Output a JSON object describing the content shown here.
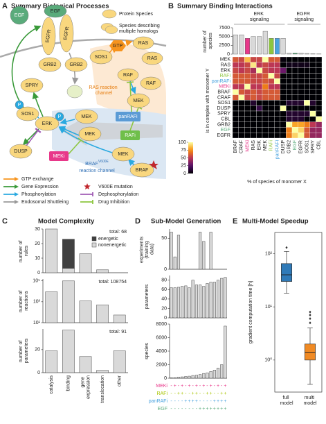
{
  "panels": [
    "A",
    "B",
    "C",
    "D",
    "E"
  ],
  "diagram": {
    "title": "Summary Biological Processes",
    "nodes": [
      "EGF",
      "EGF",
      "EGFR",
      "EGFR",
      "GRB2",
      "GRB2",
      "SPRY",
      "SOS1",
      "SOS1",
      "P",
      "GTP",
      "RAS",
      "RAS",
      "RAF",
      "RAF",
      "MEK",
      "ERK",
      "DUSP",
      "MEK",
      "MEK",
      "panRAFi",
      "RAFi",
      "MEKi",
      "MEK",
      "BRAF",
      "P"
    ],
    "ras_channel": "RAS reaction channel",
    "braf_channel": {
      "name": "BRAF",
      "superscript": "V600E",
      "text": "reaction channel"
    },
    "species_legend": [
      "Protein Species",
      "Species describing multiple homologs"
    ],
    "process_legend": [
      {
        "label": "GTP exchange",
        "color": "#f7941d"
      },
      {
        "label": "Gene Expression",
        "color": "#3a9a3a"
      },
      {
        "label": "Phosphorylation",
        "color": "#29a9e0"
      },
      {
        "label": "Endosomal Shuttleing",
        "color": "#999999"
      },
      {
        "label": "V600E mutation",
        "color": "#c1272d"
      },
      {
        "label": "Dephosphorylation",
        "color": "#a05cb5"
      },
      {
        "label": "Drug Inhibition",
        "color": "#8dc63f"
      }
    ]
  },
  "chart_data": [
    {
      "type": "heatmap",
      "title": "Summary Binding Interactions",
      "groups": [
        "ERK signaling",
        "EGFR signaling"
      ],
      "x_label": "% of species of monomer X",
      "y_label": "is in complex with monomer Y",
      "columns": [
        "BRAF",
        "CRAF",
        "MEKi",
        "RAS",
        "ERK",
        "MEK",
        "RAFi",
        "panRAFi",
        "DUSP",
        "GRB2",
        "EGF",
        "EGFR",
        "SOS1",
        "SPRY",
        "CBL"
      ],
      "rows": [
        "MEK",
        "RAS",
        "ERK",
        "RAFi",
        "panRAFi",
        "MEKi",
        "BRAF",
        "CRAF",
        "SOS1",
        "DUSP",
        "SPRY",
        "CBL",
        "GRB2",
        "EGF",
        "EGFR"
      ],
      "label_colors": {
        "MEKi": "#e8388a",
        "RAFi": "#8dc63f",
        "panRAFi": "#4aa3df",
        "EGF": "#5aab7b"
      },
      "values": [
        [
          60,
          55,
          85,
          55,
          55,
          100,
          60,
          60,
          2,
          0,
          0,
          0,
          0,
          0,
          0
        ],
        [
          50,
          50,
          55,
          95,
          50,
          55,
          50,
          50,
          0,
          5,
          5,
          5,
          5,
          0,
          0
        ],
        [
          55,
          50,
          55,
          45,
          100,
          55,
          50,
          50,
          30,
          0,
          0,
          0,
          0,
          0,
          0
        ],
        [
          60,
          60,
          60,
          55,
          55,
          60,
          100,
          55,
          0,
          0,
          0,
          0,
          0,
          0,
          0
        ],
        [
          60,
          60,
          60,
          55,
          55,
          60,
          55,
          100,
          0,
          0,
          0,
          0,
          0,
          0,
          0
        ],
        [
          50,
          50,
          100,
          50,
          50,
          70,
          50,
          50,
          0,
          0,
          0,
          0,
          0,
          0,
          0
        ],
        [
          100,
          60,
          55,
          60,
          55,
          60,
          60,
          60,
          0,
          0,
          0,
          0,
          0,
          0,
          0
        ],
        [
          60,
          100,
          55,
          60,
          55,
          60,
          60,
          60,
          0,
          0,
          0,
          0,
          0,
          0,
          0
        ],
        [
          0,
          0,
          0,
          10,
          0,
          0,
          0,
          0,
          0,
          10,
          10,
          10,
          100,
          10,
          0
        ],
        [
          0,
          0,
          0,
          0,
          15,
          0,
          0,
          0,
          100,
          0,
          0,
          0,
          0,
          0,
          0
        ],
        [
          0,
          0,
          0,
          0,
          0,
          0,
          0,
          0,
          0,
          10,
          10,
          10,
          10,
          100,
          0
        ],
        [
          0,
          0,
          0,
          0,
          0,
          0,
          0,
          0,
          0,
          10,
          10,
          10,
          0,
          0,
          100
        ],
        [
          0,
          0,
          0,
          0,
          0,
          0,
          0,
          0,
          0,
          100,
          80,
          80,
          70,
          50,
          40
        ],
        [
          0,
          0,
          0,
          0,
          0,
          0,
          0,
          0,
          0,
          70,
          100,
          90,
          60,
          40,
          40
        ],
        [
          0,
          0,
          0,
          0,
          0,
          0,
          0,
          0,
          0,
          70,
          90,
          100,
          60,
          40,
          40
        ]
      ],
      "colorbar": {
        "lim": [
          0,
          100
        ],
        "ticks": [
          0,
          25,
          50,
          75,
          100
        ]
      },
      "column_totals": {
        "label": "number of species",
        "color": "#d9d9d9",
        "values": [
          5500,
          5500,
          4500,
          5000,
          5000,
          6500,
          4500,
          4500,
          4500,
          300,
          300,
          300,
          200,
          100,
          50
        ],
        "ylim": [
          0,
          7500
        ],
        "yticks": [
          0,
          2500,
          5000,
          7500
        ]
      }
    },
    {
      "type": "bar",
      "title": "Model Complexity",
      "categories": [
        "catalysis",
        "binding",
        "gene expression",
        "translocation",
        "other"
      ],
      "color": "#d9d9d9",
      "subplots": [
        {
          "ylabel": "number of rules",
          "annotation": "total: 68",
          "ylim": [
            0,
            30
          ],
          "yticks": [
            0,
            10,
            20,
            30
          ],
          "series": [
            {
              "name": "nonenergetic",
              "color": "#d9d9d9",
              "values": [
                30,
                3,
                13,
                2,
                0
              ]
            },
            {
              "name": "energetic",
              "color": "#404040",
              "values": [
                0,
                20,
                0,
                0,
                0
              ]
            }
          ]
        },
        {
          "ylabel": "number of reactions",
          "annotation": "total: 108754",
          "log": true,
          "ylim": [
            10,
            150000
          ],
          "yticks": [
            {
              "value": 10,
              "label": "10¹"
            },
            {
              "value": 1000,
              "label": "10³"
            },
            {
              "value": 100000,
              "label": "10⁵"
            }
          ],
          "values": [
            9000,
            98000,
            1200,
            500,
            54
          ]
        },
        {
          "ylabel": "number of parameters",
          "annotation": "total: 91",
          "ylim": [
            0,
            38
          ],
          "yticks": [
            0,
            20
          ],
          "values": [
            19,
            37,
            14,
            2,
            19
          ]
        }
      ]
    },
    {
      "type": "bar",
      "title": "Sub-Model Generation",
      "color": "#d9d9d9",
      "subplots": [
        {
          "ylabel": "experiments (training data)",
          "ylim": [
            0,
            65
          ],
          "yticks": [
            0,
            50
          ],
          "values": [
            60,
            20,
            55,
            0,
            0,
            0,
            0,
            0,
            60,
            45,
            0,
            60,
            0,
            0,
            0,
            0
          ]
        },
        {
          "ylabel": "parameters",
          "ylim": [
            0,
            90
          ],
          "yticks": [
            0,
            20,
            40,
            60,
            80
          ],
          "values": [
            64,
            64,
            65,
            67,
            68,
            64,
            80,
            70,
            70,
            67,
            73,
            76,
            76,
            80,
            84,
            86
          ]
        },
        {
          "ylabel": "species",
          "ylim": [
            0,
            8000
          ],
          "yticks": [
            0,
            2000,
            4000,
            6000,
            8000
          ],
          "values": [
            60,
            80,
            150,
            200,
            250,
            300,
            400,
            450,
            550,
            700,
            800,
            1000,
            1200,
            1500,
            2000,
            7700
          ]
        }
      ],
      "conditions": [
        {
          "name": "MEKi",
          "color": "#e8388a",
          "values": [
            "-",
            "+",
            "-",
            "+",
            "-",
            "+",
            "-",
            "+",
            "-",
            "+",
            "-",
            "+",
            "-",
            "+",
            "-",
            "+"
          ]
        },
        {
          "name": "RAFi",
          "color": "#a8c400",
          "values": [
            "-",
            "-",
            "+",
            "+",
            "-",
            "-",
            "+",
            "+",
            "-",
            "-",
            "+",
            "+",
            "-",
            "-",
            "+",
            "+"
          ]
        },
        {
          "name": "panRAFi",
          "color": "#4aa3df",
          "values": [
            "-",
            "-",
            "-",
            "-",
            "+",
            "+",
            "+",
            "+",
            "-",
            "-",
            "-",
            "-",
            "+",
            "+",
            "+",
            "+"
          ]
        },
        {
          "name": "EGF",
          "color": "#5aab7b",
          "values": [
            "-",
            "-",
            "-",
            "-",
            "-",
            "-",
            "-",
            "-",
            "+",
            "+",
            "+",
            "+",
            "+",
            "+",
            "+",
            "+"
          ]
        }
      ]
    },
    {
      "type": "box",
      "title": "Multi-Model Speedup",
      "ylabel": "gradient computation time [h]",
      "log": true,
      "ylim": [
        0.25,
        250
      ],
      "yticks": [
        {
          "value": 1,
          "label": "10⁰"
        },
        {
          "value": 10,
          "label": "10¹"
        },
        {
          "value": 100,
          "label": "10²"
        }
      ],
      "boxes": [
        {
          "name": "full model",
          "color": "#2f7ab8",
          "whisker_low": 18,
          "q1": 30,
          "median": 40,
          "q3": 65,
          "whisker_high": 110,
          "outliers": [
            130
          ]
        },
        {
          "name": "multi model",
          "color": "#f08a24",
          "whisker_low": 0.35,
          "q1": 1,
          "median": 1.4,
          "q3": 2,
          "whisker_high": 4,
          "outliers": [
            5,
            6,
            7,
            8
          ]
        }
      ]
    }
  ]
}
